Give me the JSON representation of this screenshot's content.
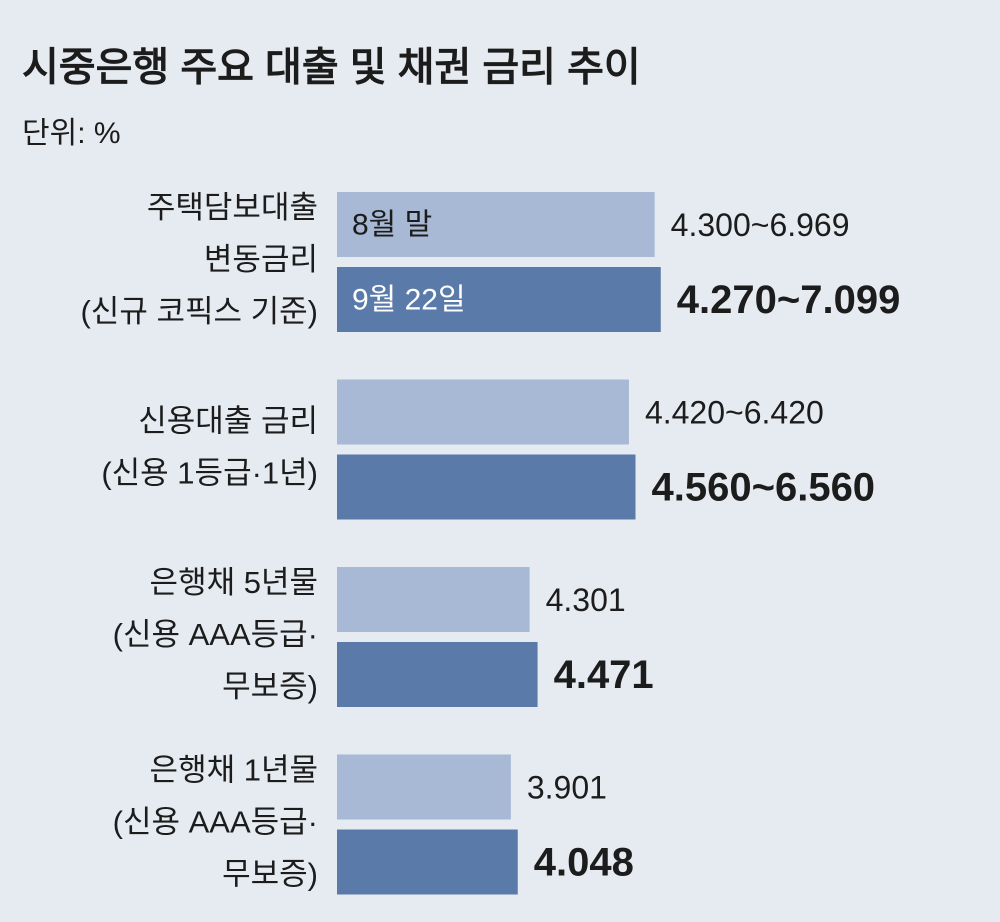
{
  "chart_data": {
    "type": "bar",
    "orientation": "horizontal",
    "title": "시중은행 주요 대출 및 채권 금리 추이",
    "subtitle": "단위: %",
    "categories": [
      [
        "주택담보대출",
        "변동금리",
        "(신규 코픽스 기준)"
      ],
      [
        "신용대출 금리",
        "(신용 1등급·1년)"
      ],
      [
        "은행채 5년물",
        "(신용 AAA등급·",
        "무보증)"
      ],
      [
        "은행채 1년물",
        "(신용 AAA등급·",
        "무보증)"
      ]
    ],
    "series": [
      {
        "name": "8월 말",
        "color": "#a7b9d5",
        "values": [
          6.969,
          6.42,
          4.301,
          3.901
        ],
        "value_labels": [
          "4.300~6.969",
          "4.420~6.420",
          "4.301",
          "3.901"
        ]
      },
      {
        "name": "9월 22일",
        "color": "#5a7aa9",
        "values": [
          7.099,
          6.56,
          4.471,
          4.048
        ],
        "value_labels": [
          "4.270~7.099",
          "4.560~6.560",
          "4.471",
          "4.048"
        ]
      }
    ],
    "xlim": [
      0,
      8
    ]
  }
}
